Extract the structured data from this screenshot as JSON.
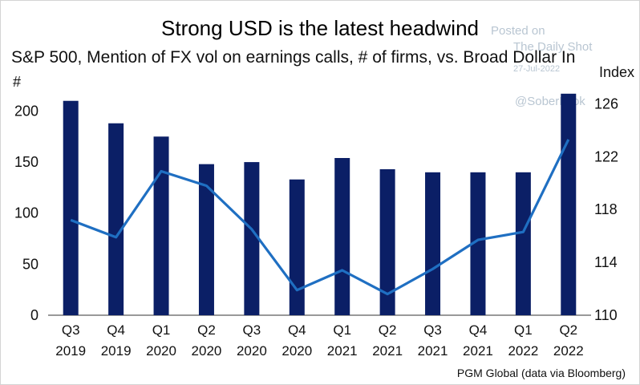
{
  "title": "Strong USD is the latest headwind",
  "subtitle": "S&P 500, Mention of FX vol on earnings calls, # of firms, vs. Broad Dollar In",
  "left_unit": "#",
  "right_unit": "Index",
  "source": "PGM Global (data via Bloomberg)",
  "watermark": {
    "line1": "Posted on",
    "line2": "The Daily Shot",
    "line3": "27-Jul-2022",
    "line4": "@SoberLook"
  },
  "colors": {
    "bar": "#0b1f66",
    "line": "#1f6fc2",
    "axis": "#333333"
  },
  "chart_data": {
    "type": "bar",
    "categories": [
      [
        "Q3",
        "2019"
      ],
      [
        "Q4",
        "2019"
      ],
      [
        "Q1",
        "2020"
      ],
      [
        "Q2",
        "2020"
      ],
      [
        "Q3",
        "2020"
      ],
      [
        "Q4",
        "2020"
      ],
      [
        "Q1",
        "2021"
      ],
      [
        "Q2",
        "2021"
      ],
      [
        "Q3",
        "2021"
      ],
      [
        "Q4",
        "2021"
      ],
      [
        "Q1",
        "2022"
      ],
      [
        "Q2",
        "2022"
      ]
    ],
    "series": [
      {
        "type": "bar",
        "axis": "left",
        "values": [
          210,
          188,
          175,
          148,
          150,
          133,
          154,
          143,
          140,
          140,
          140,
          217
        ]
      },
      {
        "type": "line",
        "axis": "right",
        "values": [
          117.2,
          115.9,
          120.9,
          119.8,
          116.5,
          111.9,
          113.4,
          111.6,
          113.5,
          115.7,
          116.3,
          123.3
        ]
      }
    ],
    "y_left": {
      "min": 0,
      "max": 220,
      "ticks": [
        0,
        50,
        100,
        150,
        200
      ]
    },
    "y_right": {
      "min": 110,
      "max": 127,
      "ticks": [
        110,
        114,
        118,
        122,
        126
      ]
    },
    "grid": false,
    "legend": "none"
  }
}
